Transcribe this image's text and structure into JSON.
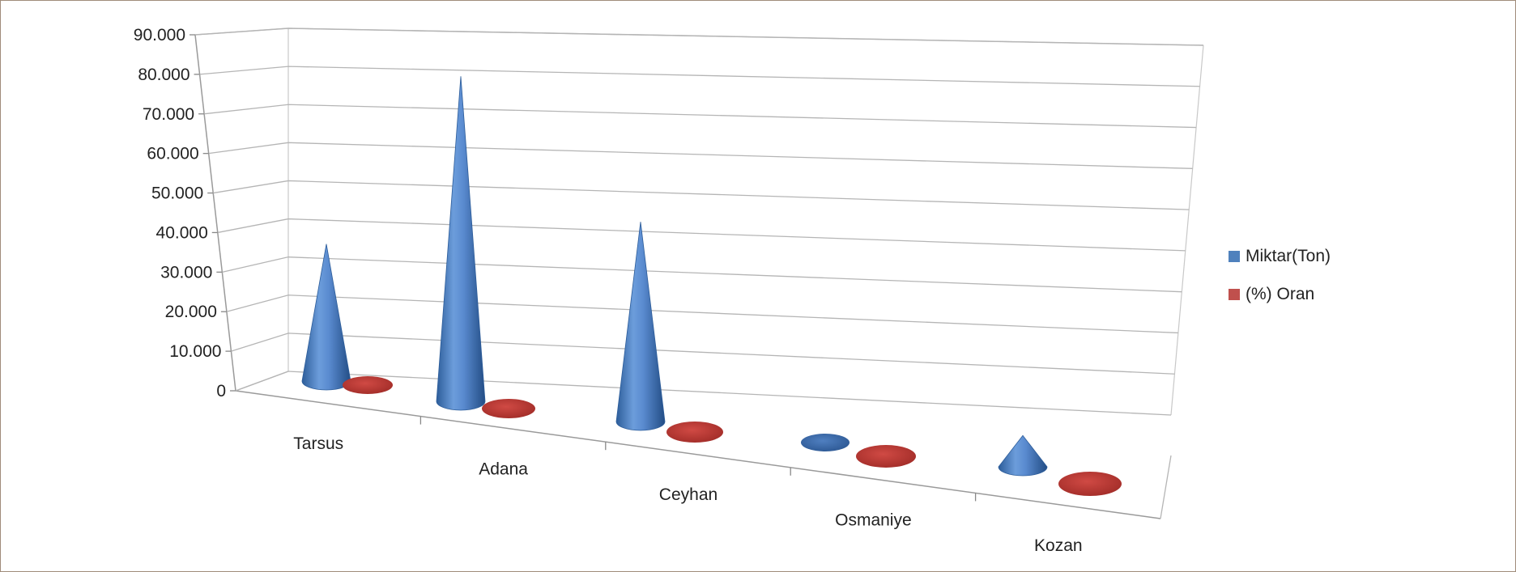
{
  "chart_data": {
    "type": "bar",
    "subtype": "3d-cone",
    "title": "",
    "xlabel": "",
    "ylabel": "",
    "categories": [
      "Tarsus",
      "Adana",
      "Ceyhan",
      "Osmaniye",
      "Kozan"
    ],
    "series": [
      {
        "name": "Miktar(Ton)",
        "color": "#4f81bd",
        "values": [
          35000,
          83000,
          51000,
          0,
          8000
        ]
      },
      {
        "name": "(%) Oran",
        "color": "#c0504d",
        "values": [
          0,
          0,
          0,
          0,
          0
        ]
      }
    ],
    "ylim": [
      0,
      90000
    ],
    "yticks": [
      "0",
      "10.000",
      "20.000",
      "30.000",
      "40.000",
      "50.000",
      "60.000",
      "70.000",
      "80.000",
      "90.000"
    ],
    "grid": true,
    "legend_position": "right"
  }
}
